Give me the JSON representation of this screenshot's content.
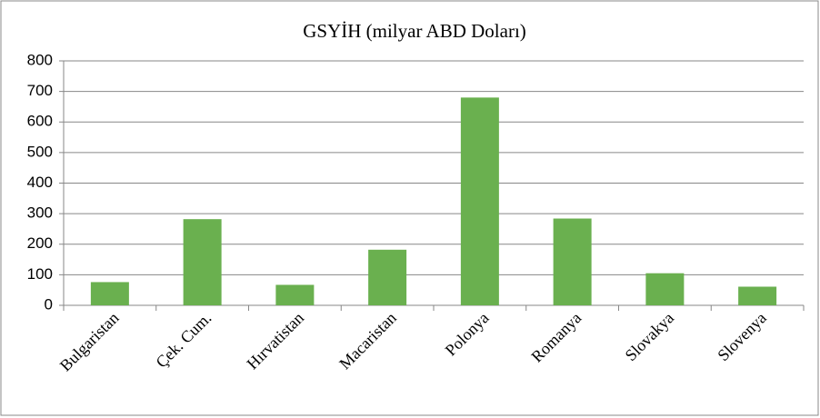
{
  "chart_data": {
    "type": "bar",
    "title": "GSYİH (milyar ABD Doları)",
    "categories": [
      "Bulgaristan",
      "Çek. Cum.",
      "Hırvatistan",
      "Macaristan",
      "Polonya",
      "Romanya",
      "Slovakya",
      "Slovenya"
    ],
    "values": [
      76,
      282,
      67,
      182,
      680,
      284,
      105,
      61
    ],
    "color": "#6ab04f",
    "ylim": [
      0,
      800
    ],
    "yticks": [
      0,
      100,
      200,
      300,
      400,
      500,
      600,
      700,
      800
    ],
    "grid": true
  }
}
